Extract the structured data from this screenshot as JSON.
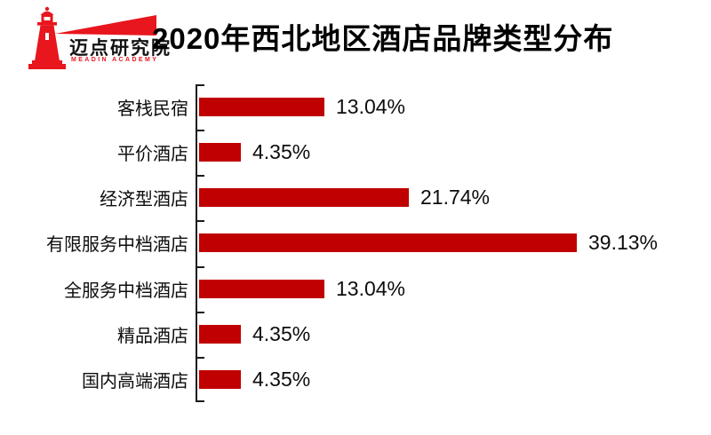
{
  "logo": {
    "brand": "迈点研究院",
    "subtitle": "MEADIN ACADEMY",
    "color": "#e8161d"
  },
  "header": {
    "title": "2020年西北地区酒店品牌类型分布"
  },
  "chart_data": {
    "type": "bar",
    "orientation": "horizontal",
    "title": "2020年西北地区酒店品牌类型分布",
    "categories": [
      "客栈民宿",
      "平价酒店",
      "经济型酒店",
      "有限服务中档酒店",
      "全服务中档酒店",
      "精品酒店",
      "国内高端酒店"
    ],
    "values": [
      13.04,
      4.35,
      21.74,
      39.13,
      13.04,
      4.35,
      4.35
    ],
    "labels": [
      "13.04%",
      "4.35%",
      "21.74%",
      "39.13%",
      "13.04%",
      "4.35%",
      "4.35%"
    ],
    "xlabel": "",
    "ylabel": "",
    "xlim": [
      0,
      45
    ],
    "bar_color": "#c00000",
    "axis_color": "#1a1a1a",
    "grid": false,
    "legend": false,
    "value_labels_shown": true
  }
}
